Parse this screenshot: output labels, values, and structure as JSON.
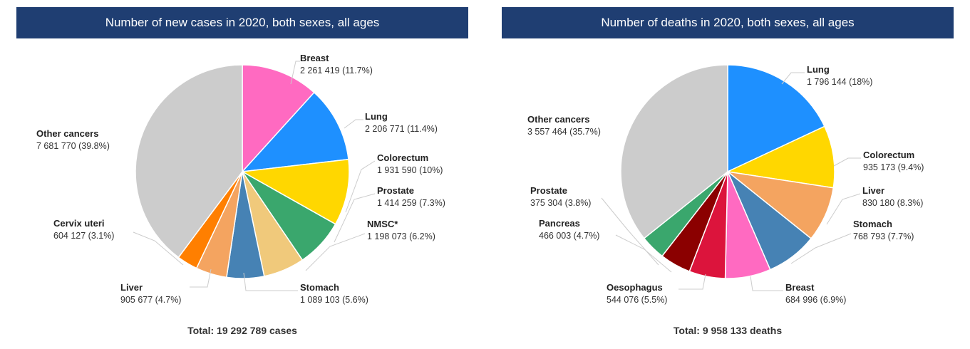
{
  "chart_data": [
    {
      "type": "pie",
      "title": "Number of new cases in 2020, both sexes, all ages",
      "total_label": "Total: 19 292 789 cases",
      "slices": [
        {
          "name": "Breast",
          "value_label": "2 261 419 (11.7%)",
          "value": 2261419,
          "percent": 11.7,
          "color": "#ff6ac1"
        },
        {
          "name": "Lung",
          "value_label": "2 206 771 (11.4%)",
          "value": 2206771,
          "percent": 11.4,
          "color": "#1e90ff"
        },
        {
          "name": "Colorectum",
          "value_label": "1 931 590 (10%)",
          "value": 1931590,
          "percent": 10.0,
          "color": "#ffd700"
        },
        {
          "name": "Prostate",
          "value_label": "1 414 259 (7.3%)",
          "value": 1414259,
          "percent": 7.3,
          "color": "#3aa76d"
        },
        {
          "name": "NMSC*",
          "value_label": "1 198 073 (6.2%)",
          "value": 1198073,
          "percent": 6.2,
          "color": "#f0c97b"
        },
        {
          "name": "Stomach",
          "value_label": "1 089 103 (5.6%)",
          "value": 1089103,
          "percent": 5.6,
          "color": "#4682b4"
        },
        {
          "name": "Liver",
          "value_label": "905 677 (4.7%)",
          "value": 905677,
          "percent": 4.7,
          "color": "#f4a460"
        },
        {
          "name": "Cervix uteri",
          "value_label": "604 127 (3.1%)",
          "value": 604127,
          "percent": 3.1,
          "color": "#ff7f00"
        },
        {
          "name": "Other cancers",
          "value_label": "7 681 770 (39.8%)",
          "value": 7681770,
          "percent": 39.8,
          "color": "#cccccc"
        }
      ]
    },
    {
      "type": "pie",
      "title": "Number of deaths in 2020, both sexes, all ages",
      "total_label": "Total: 9 958 133 deaths",
      "slices": [
        {
          "name": "Lung",
          "value_label": "1 796 144 (18%)",
          "value": 1796144,
          "percent": 18.0,
          "color": "#1e90ff"
        },
        {
          "name": "Colorectum",
          "value_label": "935 173 (9.4%)",
          "value": 935173,
          "percent": 9.4,
          "color": "#ffd700"
        },
        {
          "name": "Liver",
          "value_label": "830 180 (8.3%)",
          "value": 830180,
          "percent": 8.3,
          "color": "#f4a460"
        },
        {
          "name": "Stomach",
          "value_label": "768 793 (7.7%)",
          "value": 768793,
          "percent": 7.7,
          "color": "#4682b4"
        },
        {
          "name": "Breast",
          "value_label": "684 996 (6.9%)",
          "value": 684996,
          "percent": 6.9,
          "color": "#ff6ac1"
        },
        {
          "name": "Oesophagus",
          "value_label": "544 076 (5.5%)",
          "value": 544076,
          "percent": 5.5,
          "color": "#dc143c"
        },
        {
          "name": "Pancreas",
          "value_label": "466 003 (4.7%)",
          "value": 466003,
          "percent": 4.7,
          "color": "#8b0000"
        },
        {
          "name": "Prostate",
          "value_label": "375 304 (3.8%)",
          "value": 375304,
          "percent": 3.8,
          "color": "#3aa76d"
        },
        {
          "name": "Other cancers",
          "value_label": "3 557 464 (35.7%)",
          "value": 3557464,
          "percent": 35.7,
          "color": "#cccccc"
        }
      ]
    }
  ]
}
